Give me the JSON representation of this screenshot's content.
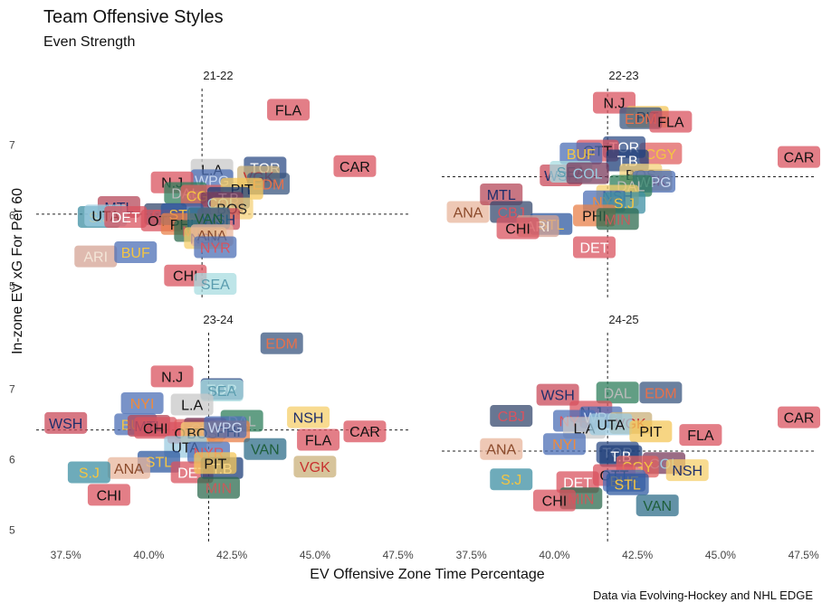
{
  "title": "Team Offensive Styles",
  "subtitle": "Even Strength",
  "caption": "Data via Evolving-Hockey and NHL EDGE",
  "chart_data": {
    "type": "scatter",
    "xlabel": "EV Offensive Zone Time Percentage",
    "ylabel": "In-zone EV xG For Per 60",
    "xlim": [
      36.5,
      48.0
    ],
    "ylim": [
      4.8,
      7.8
    ],
    "x_ticks": [
      37.5,
      40.0,
      42.5,
      45.0,
      47.5
    ],
    "x_tick_labels": [
      "37.5%",
      "40.0%",
      "42.5%",
      "45.0%",
      "47.5%"
    ],
    "y_ticks": [
      5,
      6,
      7
    ],
    "y_tick_labels": [
      "5",
      "6",
      "7"
    ],
    "team_colors": {
      "ANA": {
        "fill": "#E8B69C",
        "text": "#8B4A2B"
      },
      "ARI": {
        "fill": "#D4A394",
        "text": "#F3E6D8"
      },
      "UTA": {
        "fill": "#9CCBE0",
        "text": "#111111"
      },
      "BOS": {
        "fill": "#F4D27A",
        "text": "#222222"
      },
      "BUF": {
        "fill": "#4C6FB5",
        "text": "#F5C542"
      },
      "CGY": {
        "fill": "#E06060",
        "text": "#F5C542"
      },
      "CAR": {
        "fill": "#D9535F",
        "text": "#111111"
      },
      "CHI": {
        "fill": "#D9535F",
        "text": "#111111"
      },
      "COL": {
        "fill": "#7A3B5C",
        "text": "#9CCBE0"
      },
      "CBJ": {
        "fill": "#35486E",
        "text": "#D9535F"
      },
      "DAL": {
        "fill": "#2E7D5B",
        "text": "#BBBBBB"
      },
      "DET": {
        "fill": "#D9535F",
        "text": "#FFFFFF"
      },
      "EDM": {
        "fill": "#3A557F",
        "text": "#E8704A"
      },
      "FLA": {
        "fill": "#D9535F",
        "text": "#111111"
      },
      "L.A": {
        "fill": "#C8C8C8",
        "text": "#111111"
      },
      "MIN": {
        "fill": "#2E6B4F",
        "text": "#C75B5B"
      },
      "MTL": {
        "fill": "#B5485A",
        "text": "#1E2E6B"
      },
      "NSH": {
        "fill": "#F5CF6B",
        "text": "#1E2E6B"
      },
      "N.J": {
        "fill": "#D9535F",
        "text": "#111111"
      },
      "NYI": {
        "fill": "#4C6FB5",
        "text": "#F08A3C"
      },
      "NYR": {
        "fill": "#4C6FB5",
        "text": "#D9535F"
      },
      "OTT": {
        "fill": "#D9535F",
        "text": "#111111"
      },
      "PHI": {
        "fill": "#E8804A",
        "text": "#111111"
      },
      "PIT": {
        "fill": "#F4C75A",
        "text": "#111111"
      },
      "SEA": {
        "fill": "#A8DCE0",
        "text": "#5A9CAE"
      },
      "S.J": {
        "fill": "#3E8FA3",
        "text": "#F5C542"
      },
      "STL": {
        "fill": "#2F5AA0",
        "text": "#F5C542"
      },
      "T.B": {
        "fill": "#1F3F7A",
        "text": "#FFFFFF"
      },
      "TOR": {
        "fill": "#2F4E87",
        "text": "#FFFFFF"
      },
      "VAN": {
        "fill": "#2F6E8A",
        "text": "#1E5E3A"
      },
      "VGK": {
        "fill": "#C9B07A",
        "text": "#C8312F"
      },
      "WSH": {
        "fill": "#C94A5A",
        "text": "#1E2E6B"
      },
      "WPG": {
        "fill": "#4C6FB5",
        "text": "#C8D7F0"
      }
    },
    "panels": [
      {
        "title": "21-22",
        "mean_x": 41.6,
        "mean_y": 6.02,
        "points": [
          {
            "team": "FLA",
            "x": 44.2,
            "y": 7.5
          },
          {
            "team": "CAR",
            "x": 46.2,
            "y": 6.7
          },
          {
            "team": "TOR",
            "x": 43.5,
            "y": 6.68
          },
          {
            "team": "VGK",
            "x": 43.3,
            "y": 6.55
          },
          {
            "team": "EDM",
            "x": 43.6,
            "y": 6.45
          },
          {
            "team": "L.A",
            "x": 41.9,
            "y": 6.65
          },
          {
            "team": "WPG",
            "x": 41.9,
            "y": 6.5
          },
          {
            "team": "N.J",
            "x": 40.7,
            "y": 6.47
          },
          {
            "team": "DAL",
            "x": 41.1,
            "y": 6.32
          },
          {
            "team": "CGY",
            "x": 41.6,
            "y": 6.28
          },
          {
            "team": "PIT",
            "x": 42.8,
            "y": 6.38
          },
          {
            "team": "T.B",
            "x": 42.4,
            "y": 6.25
          },
          {
            "team": "COL",
            "x": 42.2,
            "y": 6.18
          },
          {
            "team": "BOS",
            "x": 42.5,
            "y": 6.1
          },
          {
            "team": "CBJ",
            "x": 40.5,
            "y": 6.02
          },
          {
            "team": "MTL",
            "x": 39.1,
            "y": 6.12
          },
          {
            "team": "S.J",
            "x": 38.5,
            "y": 5.98
          },
          {
            "team": "UTA",
            "x": 38.7,
            "y": 6.0
          },
          {
            "team": "DET",
            "x": 39.3,
            "y": 5.98
          },
          {
            "team": "OTT",
            "x": 40.4,
            "y": 5.93
          },
          {
            "team": "STL",
            "x": 41.0,
            "y": 6.02
          },
          {
            "team": "PHI",
            "x": 41.0,
            "y": 5.88
          },
          {
            "team": "MIN",
            "x": 41.4,
            "y": 5.78
          },
          {
            "team": "WSH",
            "x": 42.1,
            "y": 5.95
          },
          {
            "team": "VAN",
            "x": 41.8,
            "y": 5.96
          },
          {
            "team": "NSH",
            "x": 41.7,
            "y": 5.68
          },
          {
            "team": "ANA",
            "x": 41.9,
            "y": 5.72
          },
          {
            "team": "NYR",
            "x": 42.0,
            "y": 5.55
          },
          {
            "team": "ARI",
            "x": 38.4,
            "y": 5.42
          },
          {
            "team": "BUF",
            "x": 39.6,
            "y": 5.48
          },
          {
            "team": "CHI",
            "x": 41.1,
            "y": 5.15
          },
          {
            "team": "SEA",
            "x": 42.0,
            "y": 5.03
          }
        ]
      },
      {
        "title": "22-23",
        "mean_x": 41.6,
        "mean_y": 6.55,
        "points": [
          {
            "team": "N.J",
            "x": 41.8,
            "y": 7.6
          },
          {
            "team": "PIT",
            "x": 42.8,
            "y": 7.4
          },
          {
            "team": "EDM",
            "x": 42.6,
            "y": 7.38
          },
          {
            "team": "FLA",
            "x": 43.5,
            "y": 7.33
          },
          {
            "team": "CAR",
            "x": 47.5,
            "y": 6.83
          },
          {
            "team": "CGY",
            "x": 43.2,
            "y": 6.88
          },
          {
            "team": "TOR",
            "x": 42.1,
            "y": 6.97
          },
          {
            "team": "OTT",
            "x": 41.3,
            "y": 6.92
          },
          {
            "team": "BUF",
            "x": 40.8,
            "y": 6.88
          },
          {
            "team": "T.B",
            "x": 42.2,
            "y": 6.78
          },
          {
            "team": "WSH",
            "x": 40.2,
            "y": 6.57
          },
          {
            "team": "SEA",
            "x": 40.5,
            "y": 6.62
          },
          {
            "team": "COL",
            "x": 41.0,
            "y": 6.6
          },
          {
            "team": "BOS",
            "x": 42.6,
            "y": 6.58
          },
          {
            "team": "VGK",
            "x": 42.9,
            "y": 6.5
          },
          {
            "team": "WPG",
            "x": 43.0,
            "y": 6.48
          },
          {
            "team": "DAL",
            "x": 42.3,
            "y": 6.42
          },
          {
            "team": "NSH",
            "x": 41.9,
            "y": 6.28
          },
          {
            "team": "NYI",
            "x": 41.5,
            "y": 6.2
          },
          {
            "team": "S.J",
            "x": 42.1,
            "y": 6.18
          },
          {
            "team": "ANA",
            "x": 37.4,
            "y": 6.05
          },
          {
            "team": "MTL",
            "x": 38.4,
            "y": 6.3
          },
          {
            "team": "CBJ",
            "x": 38.7,
            "y": 6.05
          },
          {
            "team": "PHI",
            "x": 41.2,
            "y": 6.0
          },
          {
            "team": "MIN",
            "x": 41.9,
            "y": 5.95
          },
          {
            "team": "STL",
            "x": 39.9,
            "y": 5.88
          },
          {
            "team": "ARI",
            "x": 39.5,
            "y": 5.85
          },
          {
            "team": "CHI",
            "x": 38.9,
            "y": 5.82
          },
          {
            "team": "DET",
            "x": 41.2,
            "y": 5.55
          }
        ]
      },
      {
        "title": "23-24",
        "mean_x": 41.8,
        "mean_y": 6.42,
        "points": [
          {
            "team": "EDM",
            "x": 44.0,
            "y": 7.65
          },
          {
            "team": "N.J",
            "x": 40.7,
            "y": 7.18
          },
          {
            "team": "TOR",
            "x": 42.2,
            "y": 7.0
          },
          {
            "team": "SEA",
            "x": 42.2,
            "y": 6.98
          },
          {
            "team": "NYI",
            "x": 39.8,
            "y": 6.8
          },
          {
            "team": "L.A",
            "x": 41.3,
            "y": 6.78
          },
          {
            "team": "NSH",
            "x": 44.8,
            "y": 6.6
          },
          {
            "team": "CAR",
            "x": 46.5,
            "y": 6.4
          },
          {
            "team": "DAL",
            "x": 42.8,
            "y": 6.55
          },
          {
            "team": "FLA",
            "x": 45.1,
            "y": 6.28
          },
          {
            "team": "WSH",
            "x": 37.5,
            "y": 6.52
          },
          {
            "team": "BUF",
            "x": 39.6,
            "y": 6.5
          },
          {
            "team": "MTL",
            "x": 40.0,
            "y": 6.48
          },
          {
            "team": "CHI",
            "x": 40.2,
            "y": 6.45
          },
          {
            "team": "CGY",
            "x": 41.4,
            "y": 6.42
          },
          {
            "team": "COL",
            "x": 41.7,
            "y": 6.44
          },
          {
            "team": "OTT",
            "x": 41.2,
            "y": 6.38
          },
          {
            "team": "BOS",
            "x": 41.6,
            "y": 6.38
          },
          {
            "team": "PHI",
            "x": 42.4,
            "y": 6.4
          },
          {
            "team": "WPG",
            "x": 42.3,
            "y": 6.46
          },
          {
            "team": "VAN",
            "x": 43.5,
            "y": 6.15
          },
          {
            "team": "UTA",
            "x": 41.1,
            "y": 6.18
          },
          {
            "team": "NYR",
            "x": 41.8,
            "y": 6.1
          },
          {
            "team": "STL",
            "x": 40.3,
            "y": 5.97
          },
          {
            "team": "ANA",
            "x": 39.4,
            "y": 5.88
          },
          {
            "team": "S.J",
            "x": 38.2,
            "y": 5.82
          },
          {
            "team": "DET",
            "x": 41.3,
            "y": 5.82
          },
          {
            "team": "T.B",
            "x": 42.2,
            "y": 5.88
          },
          {
            "team": "PIT",
            "x": 42.0,
            "y": 5.95
          },
          {
            "team": "MIN",
            "x": 42.1,
            "y": 5.6
          },
          {
            "team": "VGK",
            "x": 45.0,
            "y": 5.9
          },
          {
            "team": "CHI2",
            "label": "CHI",
            "x": 38.8,
            "y": 5.5
          }
        ]
      },
      {
        "title": "24-25",
        "mean_x": 41.6,
        "mean_y": 6.12,
        "points": [
          {
            "team": "EDM",
            "x": 43.2,
            "y": 6.95
          },
          {
            "team": "DAL",
            "x": 41.9,
            "y": 6.95
          },
          {
            "team": "WSH",
            "x": 40.1,
            "y": 6.92
          },
          {
            "team": "N.J",
            "x": 41.1,
            "y": 6.68
          },
          {
            "team": "CBJ",
            "x": 38.7,
            "y": 6.62
          },
          {
            "team": "NYR",
            "x": 40.6,
            "y": 6.55
          },
          {
            "team": "WPG",
            "x": 41.4,
            "y": 6.6
          },
          {
            "team": "VGK",
            "x": 42.3,
            "y": 6.52
          },
          {
            "team": "CAR",
            "x": 47.4,
            "y": 6.6
          },
          {
            "team": "L.A",
            "x": 40.9,
            "y": 6.45
          },
          {
            "team": "UTA",
            "x": 41.7,
            "y": 6.5
          },
          {
            "team": "PIT",
            "x": 42.9,
            "y": 6.4
          },
          {
            "team": "FLA",
            "x": 44.4,
            "y": 6.35
          },
          {
            "team": "NYI",
            "x": 40.3,
            "y": 6.22
          },
          {
            "team": "ANA",
            "x": 38.4,
            "y": 6.15
          },
          {
            "team": "TOR",
            "x": 41.9,
            "y": 6.1
          },
          {
            "team": "T.B",
            "x": 42.0,
            "y": 6.05
          },
          {
            "team": "COL",
            "x": 43.3,
            "y": 5.95
          },
          {
            "team": "NSH",
            "x": 44.0,
            "y": 5.85
          },
          {
            "team": "CGY",
            "x": 42.5,
            "y": 5.9
          },
          {
            "team": "OTT",
            "x": 41.8,
            "y": 5.78
          },
          {
            "team": "S.J",
            "x": 38.7,
            "y": 5.72
          },
          {
            "team": "DET",
            "x": 40.7,
            "y": 5.68
          },
          {
            "team": "BUF",
            "x": 42.1,
            "y": 5.7
          },
          {
            "team": "STL",
            "x": 42.2,
            "y": 5.65
          },
          {
            "team": "MIN",
            "x": 40.8,
            "y": 5.45
          },
          {
            "team": "CHI",
            "x": 40.0,
            "y": 5.42
          },
          {
            "team": "VAN",
            "x": 43.1,
            "y": 5.35
          }
        ]
      }
    ]
  }
}
